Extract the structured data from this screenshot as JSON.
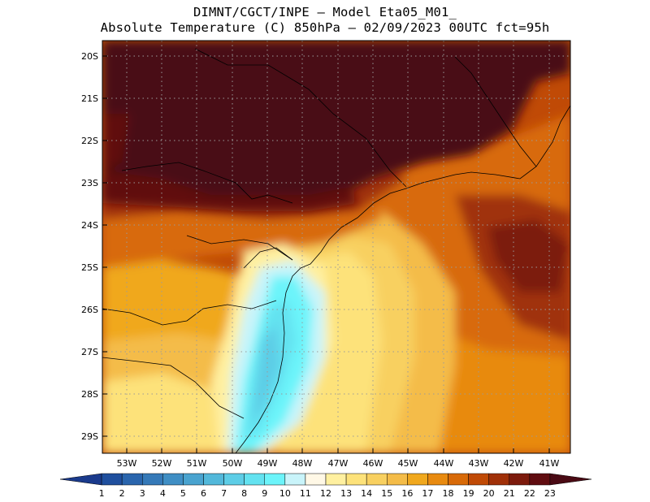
{
  "title": {
    "line1": "DIMNT/CGCT/INPE –  Model Eta05_M01_",
    "line2": "Absolute Temperature (C) 850hPa –  02/09/2023 00UTC fct=95h"
  },
  "axes": {
    "lat_labels": [
      "20S",
      "21S",
      "22S",
      "23S",
      "24S",
      "25S",
      "26S",
      "27S",
      "28S",
      "29S"
    ],
    "lon_labels": [
      "53W",
      "52W",
      "51W",
      "50W",
      "49W",
      "48W",
      "47W",
      "46W",
      "45W",
      "44W",
      "43W",
      "42W",
      "41W"
    ]
  },
  "colorbar": {
    "labels": [
      "1",
      "2",
      "3",
      "4",
      "5",
      "6",
      "7",
      "8",
      "9",
      "10",
      "11",
      "12",
      "13",
      "14",
      "15",
      "16",
      "17",
      "18",
      "19",
      "20",
      "21",
      "22",
      "23"
    ],
    "colors": [
      "#1a3a8c",
      "#1f4f9e",
      "#2a65ad",
      "#3579b8",
      "#3f8ec4",
      "#49a3cf",
      "#52b8da",
      "#5dcde6",
      "#63e2f0",
      "#6cf4fa",
      "#c9f4fa",
      "#fff8e6",
      "#fff0a0",
      "#fde27a",
      "#f8d060",
      "#f4bc48",
      "#f0a81e",
      "#e88a10",
      "#d86a08",
      "#c04a06",
      "#a03008",
      "#7c1a0c",
      "#600c10",
      "#4a0a14"
    ]
  },
  "map": {
    "region_extent": {
      "lon": [
        -53.5,
        -40.3
      ],
      "lat": [
        -29.4,
        -19.7
      ]
    },
    "colors": {
      "hot_dark": "#4a0f16",
      "coast_line": "#000000"
    }
  }
}
